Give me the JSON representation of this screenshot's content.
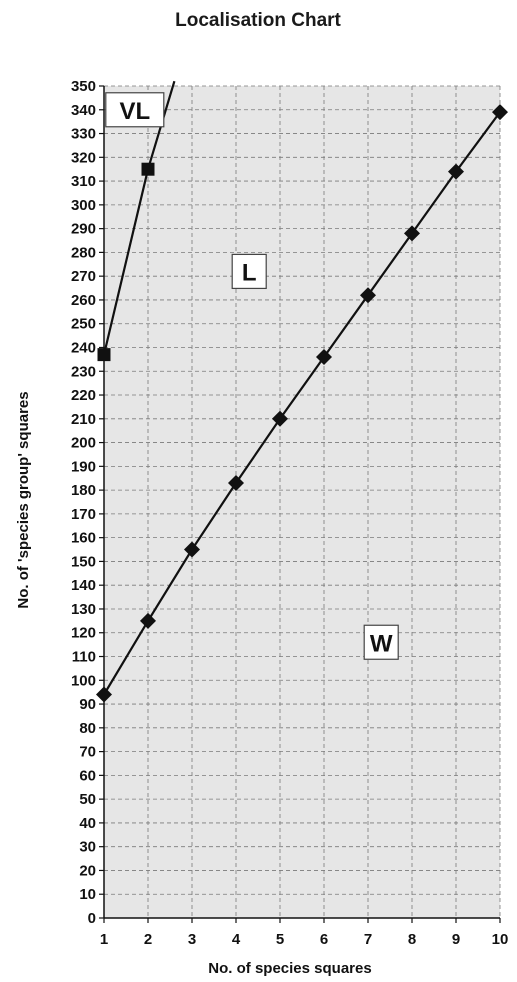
{
  "chart_data": {
    "type": "line",
    "title": "Localisation Chart",
    "xlabel": "No. of species squares",
    "ylabel": "No. of 'species group' squares",
    "xlim": [
      1,
      10
    ],
    "ylim": [
      0,
      350
    ],
    "x_ticks": [
      1,
      2,
      3,
      4,
      5,
      6,
      7,
      8,
      9,
      10
    ],
    "y_ticks": [
      0,
      10,
      20,
      30,
      40,
      50,
      60,
      70,
      80,
      90,
      100,
      110,
      120,
      130,
      140,
      150,
      160,
      170,
      180,
      190,
      200,
      210,
      220,
      230,
      240,
      250,
      260,
      270,
      280,
      290,
      300,
      310,
      320,
      330,
      340,
      350
    ],
    "grid": true,
    "series": [
      {
        "marker": "square",
        "points": [
          [
            1,
            237
          ],
          [
            2,
            315
          ]
        ],
        "line_extends_to": [
          2.6,
          352
        ]
      },
      {
        "marker": "diamond",
        "points": [
          [
            1,
            94
          ],
          [
            2,
            125
          ],
          [
            3,
            155
          ],
          [
            4,
            183
          ],
          [
            5,
            210
          ],
          [
            6,
            236
          ],
          [
            7,
            262
          ],
          [
            8,
            288
          ],
          [
            9,
            314
          ],
          [
            10,
            339
          ]
        ]
      }
    ],
    "region_labels": [
      {
        "text": "VL",
        "x": 1.7,
        "y": 340
      },
      {
        "text": "L",
        "x": 4.3,
        "y": 272
      },
      {
        "text": "W",
        "x": 7.3,
        "y": 116
      }
    ],
    "colors": {
      "plot_background": "#e6e6e6",
      "line": "#111111",
      "grid": "#7a7a7a"
    }
  }
}
